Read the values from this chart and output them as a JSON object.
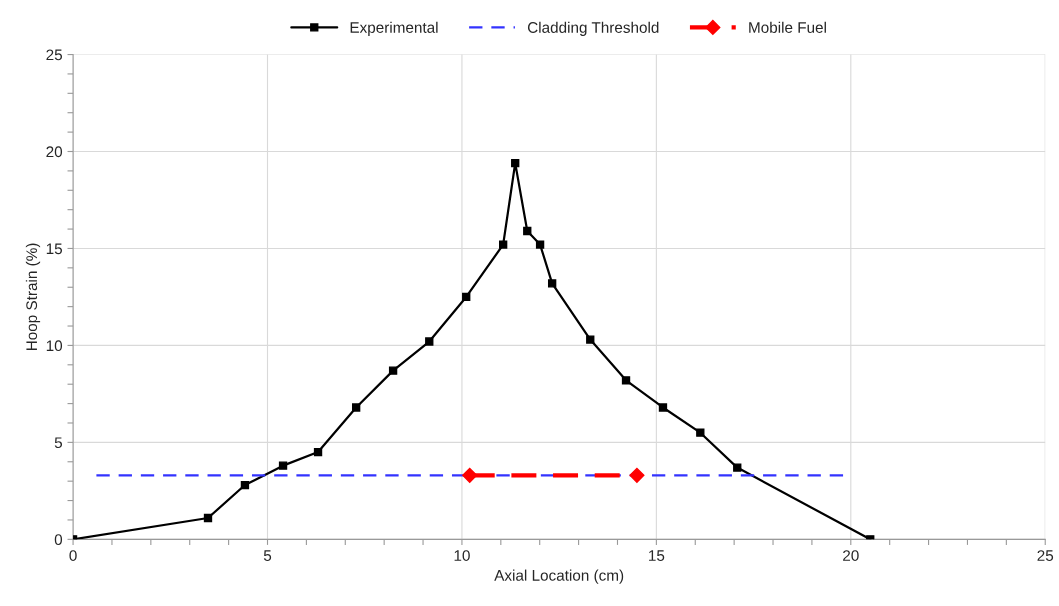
{
  "chart_data": {
    "type": "line",
    "xlabel": "Axial Location (cm)",
    "ylabel": "Hoop Strain (%)",
    "xlim": [
      0,
      25
    ],
    "ylim": [
      0,
      25
    ],
    "xticks": [
      0,
      {
        "value": 1,
        "label": null
      },
      {
        "value": 2,
        "label": null
      },
      {
        "value": 3,
        "label": null
      },
      {
        "value": 4,
        "label": null
      },
      5,
      {
        "value": 6,
        "label": null
      },
      {
        "value": 7,
        "label": null
      },
      {
        "value": 8,
        "label": null
      },
      {
        "value": 9,
        "label": null
      },
      10,
      {
        "value": 11,
        "label": null
      },
      {
        "value": 12,
        "label": null
      },
      {
        "value": 13,
        "label": null
      },
      {
        "value": 14,
        "label": null
      },
      15,
      {
        "value": 16,
        "label": null
      },
      {
        "value": 17,
        "label": null
      },
      {
        "value": 18,
        "label": null
      },
      {
        "value": 19,
        "label": null
      },
      20,
      {
        "value": 21,
        "label": null
      },
      {
        "value": 22,
        "label": null
      },
      {
        "value": 23,
        "label": null
      },
      {
        "value": 24,
        "label": null
      },
      25
    ],
    "yticks": [
      0,
      {
        "value": 1,
        "label": null
      },
      {
        "value": 2,
        "label": null
      },
      {
        "value": 3,
        "label": null
      },
      {
        "value": 4,
        "label": null
      },
      5,
      {
        "value": 6,
        "label": null
      },
      {
        "value": 7,
        "label": null
      },
      {
        "value": 8,
        "label": null
      },
      {
        "value": 9,
        "label": null
      },
      10,
      {
        "value": 11,
        "label": null
      },
      {
        "value": 12,
        "label": null
      },
      {
        "value": 13,
        "label": null
      },
      {
        "value": 14,
        "label": null
      },
      15,
      {
        "value": 16,
        "label": null
      },
      {
        "value": 17,
        "label": null
      },
      {
        "value": 18,
        "label": null
      },
      {
        "value": 19,
        "label": null
      },
      20,
      {
        "value": 21,
        "label": null
      },
      {
        "value": 22,
        "label": null
      },
      {
        "value": 23,
        "label": null
      },
      {
        "value": 24,
        "label": null
      },
      25
    ],
    "grid": true,
    "legend": "top",
    "series": [
      {
        "name": "Experimental",
        "color": "#000000",
        "marker": "square",
        "line_style": "solid",
        "x": [
          0,
          3.47,
          4.42,
          5.4,
          6.3,
          7.28,
          8.23,
          9.16,
          10.11,
          11.06,
          11.37,
          11.68,
          12.01,
          12.32,
          13.3,
          14.22,
          15.17,
          16.13,
          17.08,
          20.5
        ],
        "values": [
          0,
          1.1,
          2.8,
          3.8,
          4.5,
          6.8,
          8.7,
          10.2,
          12.5,
          15.2,
          19.4,
          15.9,
          15.2,
          13.2,
          10.3,
          8.2,
          6.8,
          5.5,
          3.7,
          0
        ]
      },
      {
        "name": "Cladding Threshold",
        "color": "#3333ff",
        "marker": "none",
        "line_style": "dashed",
        "x": [
          0.6,
          19.9
        ],
        "values": [
          3.3,
          3.3
        ]
      },
      {
        "name": "Mobile Fuel",
        "color": "#ff0000",
        "marker": "diamond",
        "line_style": "dashed",
        "x": [
          10.2,
          14.5
        ],
        "values": [
          3.3,
          3.3
        ]
      }
    ]
  }
}
